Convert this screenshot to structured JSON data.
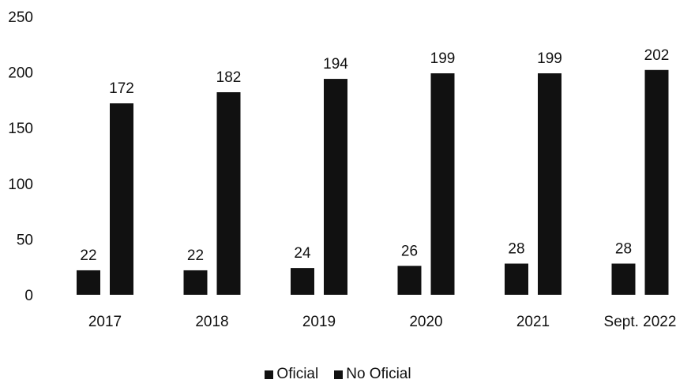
{
  "chart_data": {
    "type": "bar",
    "categories": [
      "2017",
      "2018",
      "2019",
      "2020",
      "2021",
      "Sept. 2022"
    ],
    "series": [
      {
        "name": "Oficial",
        "values": [
          22,
          22,
          24,
          26,
          28,
          28
        ],
        "color": "#111111"
      },
      {
        "name": "No Oficial",
        "values": [
          172,
          182,
          194,
          199,
          199,
          202
        ],
        "color": "#111111"
      }
    ],
    "y_ticks": [
      "0",
      "50",
      "100",
      "150",
      "200",
      "250"
    ],
    "ylim": [
      0,
      250
    ],
    "grid": false,
    "legend_position": "bottom-center",
    "data_labels": true
  }
}
